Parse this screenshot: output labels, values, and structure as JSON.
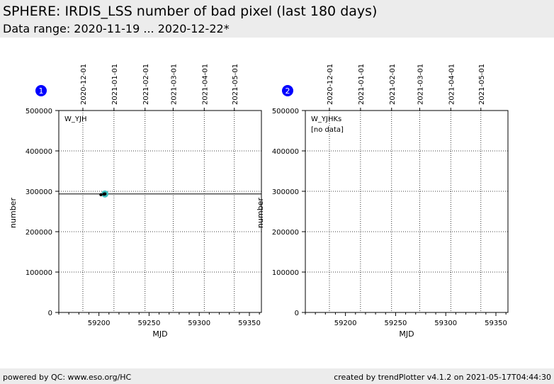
{
  "header": {
    "title": "SPHERE: IRDIS_LSS number of bad pixel (last 180 days)",
    "subtitle": "Data range: 2020-11-19 ... 2020-12-22*"
  },
  "footer": {
    "left": "powered by QC: www.eso.org/HC",
    "right": "created by trendPlotter v4.1.2 on 2021-05-17T04:44:30"
  },
  "colors": {
    "badge": "#0000ff",
    "marker_highlight": "#40c0c0",
    "points": "#000000",
    "reference_line": "#000000"
  },
  "chart_data": [
    {
      "type": "scatter",
      "panel_number": "1",
      "label": "W_YJH",
      "note": "",
      "xlabel": "MJD",
      "ylabel": "number",
      "xlim": [
        59160,
        59362
      ],
      "ylim": [
        0,
        500000
      ],
      "x_ticks": [
        59200,
        59250,
        59300,
        59350
      ],
      "y_ticks": [
        0,
        100000,
        200000,
        300000,
        400000,
        500000
      ],
      "top_date_ticks": [
        {
          "x": 59184,
          "label": "2020-12-01"
        },
        {
          "x": 59215,
          "label": "2021-01-01"
        },
        {
          "x": 59246,
          "label": "2021-02-01"
        },
        {
          "x": 59274,
          "label": "2021-03-01"
        },
        {
          "x": 59305,
          "label": "2021-04-01"
        },
        {
          "x": 59335,
          "label": "2021-05-01"
        }
      ],
      "reference_value": 293500,
      "points": [
        {
          "x": 59202,
          "y": 291500
        },
        {
          "x": 59205,
          "y": 293000
        },
        {
          "x": 59206,
          "y": 293500
        }
      ],
      "highlight_point": {
        "x": 59206,
        "y": 293500
      },
      "grid": true
    },
    {
      "type": "scatter",
      "panel_number": "2",
      "label": "W_YJHKs",
      "note": "[no data]",
      "xlabel": "MJD",
      "ylabel": "number",
      "xlim": [
        59160,
        59362
      ],
      "ylim": [
        0,
        500000
      ],
      "x_ticks": [
        59200,
        59250,
        59300,
        59350
      ],
      "y_ticks": [
        0,
        100000,
        200000,
        300000,
        400000,
        500000
      ],
      "top_date_ticks": [
        {
          "x": 59184,
          "label": "2020-12-01"
        },
        {
          "x": 59215,
          "label": "2021-01-01"
        },
        {
          "x": 59246,
          "label": "2021-02-01"
        },
        {
          "x": 59274,
          "label": "2021-03-01"
        },
        {
          "x": 59305,
          "label": "2021-04-01"
        },
        {
          "x": 59335,
          "label": "2021-05-01"
        }
      ],
      "reference_value": null,
      "points": [],
      "highlight_point": null,
      "grid": true
    }
  ]
}
